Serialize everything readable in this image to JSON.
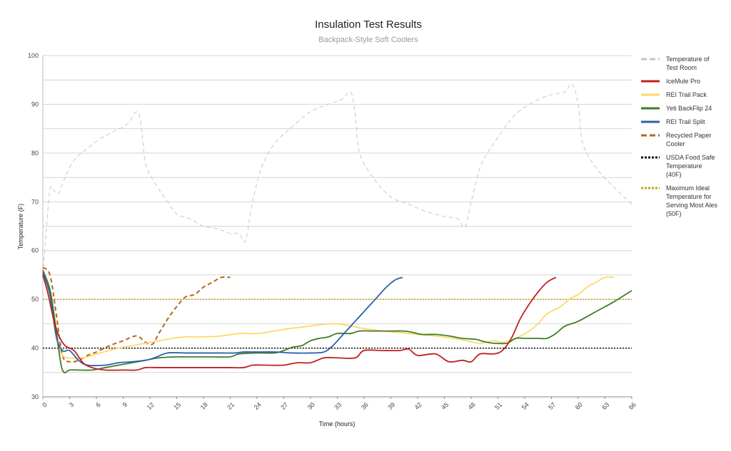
{
  "chart_data": {
    "type": "line",
    "title": "Insulation Test Results",
    "subtitle": "Backpack-Style Soft Coolers",
    "xlabel": "Time (hours)",
    "ylabel": "Temperature (F)",
    "xlim": [
      0,
      66
    ],
    "ylim": [
      30,
      100
    ],
    "xticks": [
      0,
      3,
      6,
      9,
      12,
      15,
      18,
      21,
      24,
      27,
      30,
      33,
      36,
      39,
      42,
      45,
      48,
      51,
      54,
      57,
      60,
      63,
      66
    ],
    "yticks": [
      30,
      40,
      50,
      60,
      70,
      80,
      90,
      100
    ],
    "grid": true,
    "legend_position": "right",
    "series": [
      {
        "name": "Temperature of Test Room",
        "color": "#c8c8c8",
        "style": "dashed",
        "points": [
          [
            0,
            55
          ],
          [
            0.3,
            62
          ],
          [
            0.8,
            72.5
          ],
          [
            1.3,
            72.2
          ],
          [
            1.8,
            71.8
          ],
          [
            2.5,
            75
          ],
          [
            3.5,
            78.5
          ],
          [
            5,
            81
          ],
          [
            6.5,
            83
          ],
          [
            8,
            84.5
          ],
          [
            9.5,
            86
          ],
          [
            10.5,
            88.5
          ],
          [
            11,
            86
          ],
          [
            11.5,
            78
          ],
          [
            12.5,
            74
          ],
          [
            14,
            70
          ],
          [
            15,
            67.5
          ],
          [
            16.5,
            66.5
          ],
          [
            18,
            65
          ],
          [
            19.5,
            64.5
          ],
          [
            21,
            63.5
          ],
          [
            22,
            63.5
          ],
          [
            22.7,
            62
          ],
          [
            23.5,
            70
          ],
          [
            24.5,
            77
          ],
          [
            26,
            82
          ],
          [
            28,
            85.5
          ],
          [
            30,
            88.5
          ],
          [
            32,
            90
          ],
          [
            33.5,
            91
          ],
          [
            34.5,
            92.5
          ],
          [
            35,
            88
          ],
          [
            35.5,
            80
          ],
          [
            37,
            75
          ],
          [
            39,
            71
          ],
          [
            41,
            69.5
          ],
          [
            43,
            68
          ],
          [
            45,
            67
          ],
          [
            46.5,
            66.5
          ],
          [
            47.3,
            64.8
          ],
          [
            48,
            70
          ],
          [
            49,
            77
          ],
          [
            50,
            80.5
          ],
          [
            51.5,
            84.5
          ],
          [
            53,
            88
          ],
          [
            55,
            90.5
          ],
          [
            57,
            92
          ],
          [
            58.5,
            92.5
          ],
          [
            59.3,
            94.2
          ],
          [
            60,
            90
          ],
          [
            60.5,
            82
          ],
          [
            62,
            77
          ],
          [
            64,
            73
          ],
          [
            66,
            69.5
          ]
        ]
      },
      {
        "name": "IceMule Pro",
        "color": "#c0201e",
        "style": "solid",
        "points": [
          [
            0,
            55
          ],
          [
            0.6,
            51
          ],
          [
            1.2,
            46
          ],
          [
            1.8,
            42.5
          ],
          [
            2.5,
            40.5
          ],
          [
            3.5,
            39.5
          ],
          [
            4.5,
            37
          ],
          [
            5.5,
            36
          ],
          [
            7,
            35.5
          ],
          [
            9,
            35.5
          ],
          [
            10.5,
            35.5
          ],
          [
            11.5,
            36
          ],
          [
            13,
            36
          ],
          [
            15,
            36
          ],
          [
            18,
            36
          ],
          [
            21,
            36
          ],
          [
            22.5,
            36
          ],
          [
            23.5,
            36.5
          ],
          [
            25,
            36.5
          ],
          [
            27,
            36.5
          ],
          [
            28.5,
            37
          ],
          [
            30,
            37
          ],
          [
            31.5,
            38
          ],
          [
            33,
            38
          ],
          [
            35,
            38
          ],
          [
            36,
            39.5
          ],
          [
            38,
            39.5
          ],
          [
            40,
            39.5
          ],
          [
            41,
            39.8
          ],
          [
            42,
            38.5
          ],
          [
            44,
            38.8
          ],
          [
            45.5,
            37.2
          ],
          [
            47,
            37.5
          ],
          [
            48,
            37.2
          ],
          [
            49,
            38.8
          ],
          [
            50.5,
            38.8
          ],
          [
            51.5,
            39.5
          ],
          [
            52.5,
            42
          ],
          [
            53.5,
            46
          ],
          [
            54.5,
            49
          ],
          [
            55.5,
            51.5
          ],
          [
            56.5,
            53.5
          ],
          [
            57.5,
            54.5
          ]
        ]
      },
      {
        "name": "REI Trail Pack",
        "color": "#fdd86a",
        "style": "solid",
        "points": [
          [
            0,
            55
          ],
          [
            0.8,
            50
          ],
          [
            1.5,
            42
          ],
          [
            2.2,
            38.5
          ],
          [
            3,
            38
          ],
          [
            4.5,
            38
          ],
          [
            5.5,
            38.5
          ],
          [
            7,
            39.3
          ],
          [
            8.5,
            40
          ],
          [
            10,
            40.5
          ],
          [
            11.5,
            41
          ],
          [
            13,
            41.5
          ],
          [
            14.5,
            42
          ],
          [
            16,
            42.3
          ],
          [
            18,
            42.3
          ],
          [
            20,
            42.5
          ],
          [
            22,
            43
          ],
          [
            24,
            43
          ],
          [
            26,
            43.5
          ],
          [
            27.5,
            44
          ],
          [
            29,
            44.3
          ],
          [
            31,
            44.8
          ],
          [
            33,
            45
          ],
          [
            34.5,
            44.5
          ],
          [
            36,
            44
          ],
          [
            38,
            43.5
          ],
          [
            40,
            43.2
          ],
          [
            42,
            42.8
          ],
          [
            44,
            42.5
          ],
          [
            46,
            42
          ],
          [
            47.5,
            41.5
          ],
          [
            49,
            41
          ],
          [
            50.5,
            41.5
          ],
          [
            51.5,
            41.2
          ],
          [
            53,
            42
          ],
          [
            54.5,
            43.5
          ],
          [
            55.5,
            45
          ],
          [
            56.5,
            47
          ],
          [
            58,
            48.5
          ],
          [
            59,
            50
          ],
          [
            60,
            51
          ],
          [
            61,
            52.5
          ],
          [
            62,
            53.5
          ],
          [
            63,
            54.5
          ],
          [
            64,
            54.5
          ]
        ]
      },
      {
        "name": "Yeti BackFlip 24",
        "color": "#3f7d2a",
        "style": "solid",
        "points": [
          [
            0,
            56
          ],
          [
            0.8,
            52
          ],
          [
            1.4,
            45
          ],
          [
            2,
            37
          ],
          [
            2.4,
            35
          ],
          [
            3,
            35.5
          ],
          [
            4,
            35.5
          ],
          [
            5.5,
            35.5
          ],
          [
            7,
            36
          ],
          [
            8.5,
            36.5
          ],
          [
            10,
            37
          ],
          [
            11.5,
            37.5
          ],
          [
            13,
            38
          ],
          [
            15,
            38.2
          ],
          [
            17,
            38.2
          ],
          [
            19,
            38.2
          ],
          [
            21,
            38.2
          ],
          [
            22,
            38.8
          ],
          [
            24,
            39
          ],
          [
            26,
            39
          ],
          [
            27,
            39.5
          ],
          [
            28,
            40.2
          ],
          [
            29,
            40.5
          ],
          [
            30,
            41.5
          ],
          [
            31,
            42
          ],
          [
            32,
            42.3
          ],
          [
            33,
            43
          ],
          [
            34.5,
            43
          ],
          [
            35.5,
            43.5
          ],
          [
            37,
            43.5
          ],
          [
            39,
            43.5
          ],
          [
            40.5,
            43.5
          ],
          [
            41.5,
            43.2
          ],
          [
            42.5,
            42.8
          ],
          [
            44,
            42.8
          ],
          [
            45.5,
            42.5
          ],
          [
            47,
            42
          ],
          [
            48.5,
            41.8
          ],
          [
            49.5,
            41.3
          ],
          [
            50.5,
            41
          ],
          [
            52,
            41
          ],
          [
            53,
            42
          ],
          [
            54,
            42
          ],
          [
            55.5,
            42
          ],
          [
            56.5,
            42
          ],
          [
            57.5,
            43
          ],
          [
            58.5,
            44.5
          ],
          [
            60,
            45.5
          ],
          [
            62,
            47.5
          ],
          [
            64,
            49.5
          ],
          [
            66,
            51.8
          ]
        ]
      },
      {
        "name": "REI Trail Split",
        "color": "#2a5fb0",
        "style": "solid",
        "points": [
          [
            0,
            55.5
          ],
          [
            0.8,
            51
          ],
          [
            1.5,
            42.5
          ],
          [
            2.2,
            39.5
          ],
          [
            3,
            39.5
          ],
          [
            4,
            37.5
          ],
          [
            5,
            36.5
          ],
          [
            7,
            36.5
          ],
          [
            8.5,
            37
          ],
          [
            10,
            37.2
          ],
          [
            11.5,
            37.5
          ],
          [
            12.5,
            38
          ],
          [
            14,
            39
          ],
          [
            16,
            39
          ],
          [
            18,
            39
          ],
          [
            20,
            39
          ],
          [
            21.5,
            39
          ],
          [
            22.5,
            39.2
          ],
          [
            24,
            39.2
          ],
          [
            26,
            39.2
          ],
          [
            28,
            39
          ],
          [
            30,
            39
          ],
          [
            31.5,
            39.2
          ],
          [
            32.5,
            40.5
          ],
          [
            33.5,
            42.5
          ],
          [
            34.5,
            44.5
          ],
          [
            35.5,
            46.5
          ],
          [
            36.5,
            48.5
          ],
          [
            37.5,
            50.5
          ],
          [
            38.5,
            52.5
          ],
          [
            39.5,
            54
          ],
          [
            40.3,
            54.5
          ]
        ]
      },
      {
        "name": "Recycled Paper Cooler",
        "color": "#b8651b",
        "style": "dashed",
        "points": [
          [
            0,
            56.5
          ],
          [
            0.8,
            55
          ],
          [
            1.5,
            47
          ],
          [
            2.2,
            38.5
          ],
          [
            3,
            37.2
          ],
          [
            4,
            37.5
          ],
          [
            5,
            38.5
          ],
          [
            6,
            39.2
          ],
          [
            7.5,
            40.5
          ],
          [
            9,
            41.5
          ],
          [
            10.5,
            42.5
          ],
          [
            11.5,
            41.2
          ],
          [
            12.3,
            40.8
          ],
          [
            13,
            43
          ],
          [
            14,
            46
          ],
          [
            15,
            48.5
          ],
          [
            16,
            50.5
          ],
          [
            17,
            51
          ],
          [
            18,
            52.5
          ],
          [
            19,
            53.5
          ],
          [
            20,
            54.5
          ],
          [
            21,
            54.5
          ]
        ]
      },
      {
        "name": "USDA Food Safe Temperature (40F)",
        "color": "#111111",
        "style": "dotted",
        "points": [
          [
            0,
            40
          ],
          [
            66,
            40
          ]
        ]
      },
      {
        "name": "Maximum Ideal Temperature for Serving Most Ales (50F)",
        "color": "#c8a21a",
        "style": "dotted",
        "points": [
          [
            0,
            50
          ],
          [
            66,
            50
          ]
        ]
      }
    ],
    "legend": [
      {
        "lines": [
          "Temperature of",
          "Test Room"
        ]
      },
      {
        "lines": [
          "IceMule Pro"
        ]
      },
      {
        "lines": [
          "REI Trail Pack"
        ]
      },
      {
        "lines": [
          "Yeti BackFlip 24"
        ]
      },
      {
        "lines": [
          "REI Trail Split"
        ]
      },
      {
        "lines": [
          "Recycled Paper",
          "Cooler"
        ]
      },
      {
        "lines": [
          "USDA Food Safe",
          "Temperature",
          "(40F)"
        ]
      },
      {
        "lines": [
          "Maximum Ideal",
          "Temperature for",
          "Serving Most Ales",
          "(50F)"
        ]
      }
    ]
  }
}
